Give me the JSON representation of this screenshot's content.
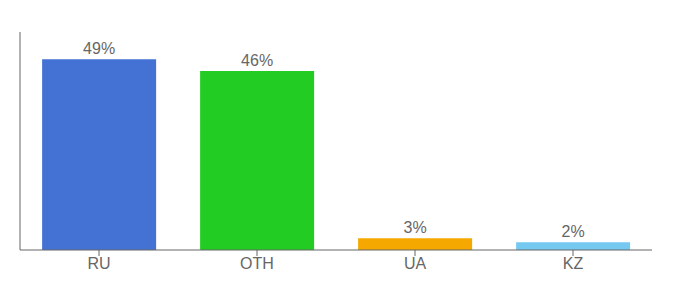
{
  "chart_data": {
    "type": "bar",
    "categories": [
      "RU",
      "OTH",
      "UA",
      "KZ"
    ],
    "values": [
      49,
      46,
      3,
      2
    ],
    "colors": [
      "#4472d4",
      "#22cc22",
      "#f5a800",
      "#75c8f0"
    ],
    "value_labels": [
      "49%",
      "46%",
      "3%",
      "2%"
    ],
    "data_labels": true,
    "ylim": [
      0,
      56
    ],
    "tick_labels": "x"
  }
}
